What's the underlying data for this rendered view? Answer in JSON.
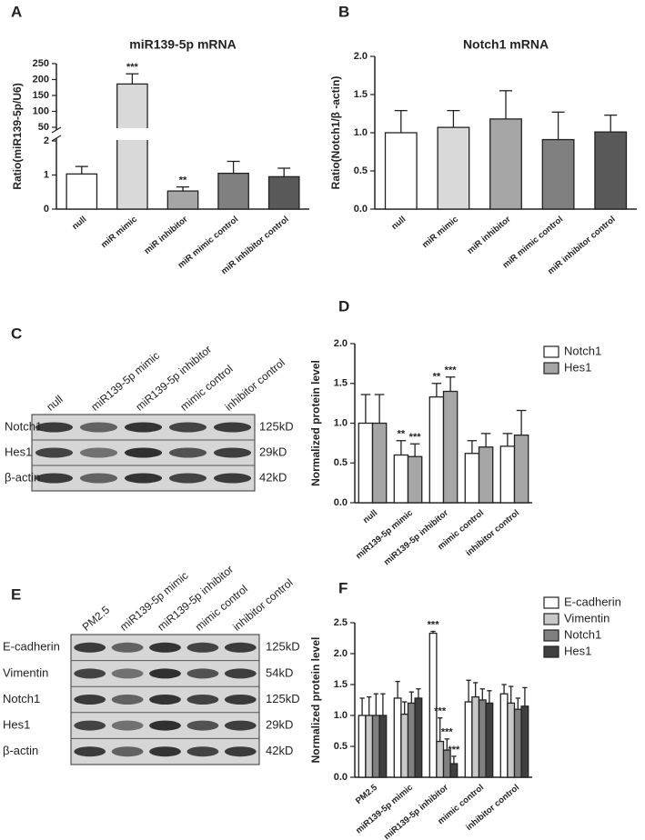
{
  "chart_data": [
    {
      "type": "bar",
      "panel": "A",
      "title": "miR139-5p mRNA",
      "ylabel": "Ratio(miR139-5p/U6)",
      "categories": [
        "null",
        "miR mimic",
        "miR inhibitor",
        "miR mimic control",
        "miR inhibitor control"
      ],
      "values": [
        1.03,
        186,
        0.53,
        1.05,
        0.95
      ],
      "errors": [
        0.22,
        32,
        0.12,
        0.35,
        0.25
      ],
      "annotations": [
        null,
        "***",
        "**",
        null,
        null
      ],
      "colors": [
        "#ffffff",
        "#d9d9d9",
        "#a6a6a6",
        "#808080",
        "#595959"
      ],
      "ylim": [
        0,
        250
      ],
      "axis_break": [
        2,
        50
      ],
      "yticks": [
        0,
        1,
        2,
        50,
        100,
        150,
        200,
        250
      ],
      "grid": false
    },
    {
      "type": "bar",
      "panel": "B",
      "title": "Notch1 mRNA",
      "ylabel": "Ratio(Notch1/β -actin)",
      "categories": [
        "null",
        "miR mimic",
        "miR inhibitor",
        "miR mimic control",
        "miR inhibitor control"
      ],
      "values": [
        1.0,
        1.07,
        1.18,
        0.91,
        1.01
      ],
      "errors": [
        0.29,
        0.22,
        0.37,
        0.36,
        0.22
      ],
      "colors": [
        "#ffffff",
        "#d9d9d9",
        "#a6a6a6",
        "#808080",
        "#595959"
      ],
      "ylim": [
        0,
        2
      ],
      "yticks": [
        {
          "value": 0,
          "label": "0.0"
        },
        {
          "value": 0.5,
          "label": "0.5"
        },
        {
          "value": 1,
          "label": "1.0"
        },
        {
          "value": 1.5,
          "label": "1.5"
        },
        {
          "value": 2,
          "label": "2.0"
        }
      ],
      "grid": false
    },
    {
      "type": "bar",
      "panel": "D",
      "ylabel": "Normalized protein level",
      "categories": [
        "null",
        "miR139-5p mimic",
        "miR139-5p inhibitor",
        "mimic control",
        "inhibitor control"
      ],
      "series": [
        {
          "name": "Notch1",
          "color": "#ffffff",
          "values": [
            1.0,
            0.6,
            1.33,
            0.62,
            0.71
          ],
          "errors": [
            0.36,
            0.18,
            0.17,
            0.16,
            0.16
          ],
          "annotations": [
            null,
            "**",
            "**",
            null,
            null
          ]
        },
        {
          "name": "Hes1",
          "color": "#a6a6a6",
          "values": [
            1.0,
            0.58,
            1.4,
            0.7,
            0.85
          ],
          "errors": [
            0.36,
            0.16,
            0.18,
            0.17,
            0.31
          ],
          "annotations": [
            null,
            "***",
            "***",
            null,
            null
          ]
        }
      ],
      "ylim": [
        0,
        2
      ],
      "yticks": [
        {
          "value": 0,
          "label": "0.0"
        },
        {
          "value": 0.5,
          "label": "0.5"
        },
        {
          "value": 1,
          "label": "1.0"
        },
        {
          "value": 1.5,
          "label": "1.5"
        },
        {
          "value": 2,
          "label": "2.0"
        }
      ],
      "grid": false,
      "legend": "top-right"
    },
    {
      "type": "bar",
      "panel": "F",
      "ylabel": "Normalized protein level",
      "categories": [
        "PM2.5",
        "miR139-5p mimic",
        "miR139-5p inhibitor",
        "mimic control",
        "inhibitor control"
      ],
      "series": [
        {
          "name": "E-cadherin",
          "color": "#ffffff",
          "values": [
            1.0,
            1.28,
            2.33,
            1.22,
            1.35
          ],
          "errors": [
            0.28,
            0.27,
            0.03,
            0.35,
            0.15
          ],
          "annotations": [
            null,
            null,
            "***",
            null,
            null
          ]
        },
        {
          "name": "Vimentin",
          "color": "#c8c8c8",
          "values": [
            1.0,
            1.02,
            0.58,
            1.3,
            1.2
          ],
          "errors": [
            0.3,
            0.2,
            0.38,
            0.23,
            0.27
          ],
          "annotations": [
            null,
            null,
            "***",
            null,
            null
          ]
        },
        {
          "name": "Notch1",
          "color": "#808080",
          "values": [
            1.0,
            1.2,
            0.44,
            1.25,
            1.1
          ],
          "errors": [
            0.35,
            0.18,
            0.18,
            0.18,
            0.18
          ],
          "annotations": [
            null,
            null,
            "***",
            null,
            null
          ]
        },
        {
          "name": "Hes1",
          "color": "#404040",
          "values": [
            1.0,
            1.28,
            0.22,
            1.2,
            1.15
          ],
          "errors": [
            0.35,
            0.15,
            0.12,
            0.2,
            0.3
          ],
          "annotations": [
            null,
            null,
            "***",
            null,
            null
          ]
        }
      ],
      "ylim": [
        0,
        2.5
      ],
      "yticks": [
        {
          "value": 0,
          "label": "0.0"
        },
        {
          "value": 0.5,
          "label": "0.5"
        },
        {
          "value": 1,
          "label": "1.0"
        },
        {
          "value": 1.5,
          "label": "1.5"
        },
        {
          "value": 2,
          "label": "2.0"
        },
        {
          "value": 2.5,
          "label": "2.5"
        }
      ],
      "grid": false,
      "legend": "top-right"
    }
  ],
  "blots": [
    {
      "panel": "C",
      "lanes": [
        "null",
        "miR139-5p mimic",
        "miR139-5p inhibitor",
        "mimic control",
        "inhibitor control"
      ],
      "rows": [
        {
          "name": "Notch1",
          "size": "125kD"
        },
        {
          "name": "Hes1",
          "size": "29kD"
        },
        {
          "name": "β-actin",
          "size": "42kD"
        }
      ]
    },
    {
      "panel": "E",
      "lanes": [
        "PM2.5",
        "miR139-5p mimic",
        "miR139-5p inhibitor",
        "mimic control",
        "inhibitor control"
      ],
      "rows": [
        {
          "name": "E-cadherin",
          "size": "125kD"
        },
        {
          "name": "Vimentin",
          "size": "54kD"
        },
        {
          "name": "Notch1",
          "size": "125kD"
        },
        {
          "name": "Hes1",
          "size": "29kD"
        },
        {
          "name": "β-actin",
          "size": "42kD"
        }
      ]
    }
  ]
}
